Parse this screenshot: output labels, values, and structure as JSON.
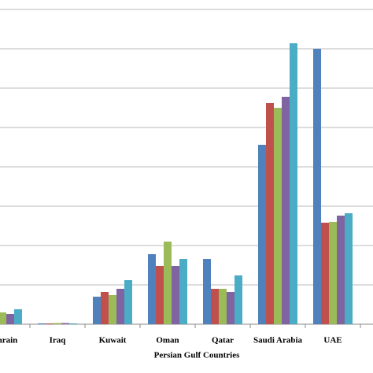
{
  "chart_data": {
    "type": "bar",
    "x_label": "Persian Gulf Countries",
    "categories": [
      "Bahrain",
      "Iraq",
      "Kuwait",
      "Oman",
      "Qatar",
      "Saudi Arabia",
      "UAE"
    ],
    "series": [
      {
        "color": "#4f81bd",
        "values": [
          0.3,
          0.02,
          0.7,
          1.78,
          1.66,
          4.56,
          7.0
        ]
      },
      {
        "color": "#c0504d",
        "values": [
          0.28,
          0.02,
          0.82,
          1.48,
          0.9,
          5.62,
          2.58
        ]
      },
      {
        "color": "#9bbb59",
        "values": [
          0.3,
          0.03,
          0.74,
          2.1,
          0.9,
          5.5,
          2.6
        ]
      },
      {
        "color": "#8064a2",
        "values": [
          0.26,
          0.03,
          0.9,
          1.48,
          0.82,
          5.78,
          2.76
        ]
      },
      {
        "color": "#4bacc6",
        "values": [
          0.38,
          0.02,
          1.12,
          1.66,
          1.24,
          7.14,
          2.82
        ]
      }
    ],
    "ylim": [
      0,
      8
    ],
    "yticks": [
      0,
      1,
      2,
      3,
      4,
      5,
      6,
      7,
      8
    ],
    "grid": true
  }
}
